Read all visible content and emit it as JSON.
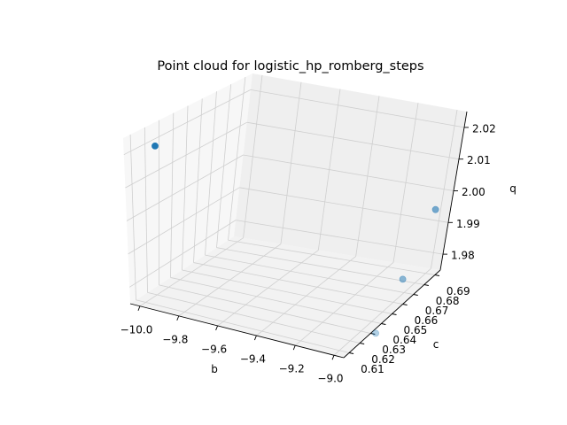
{
  "chart_data": {
    "type": "scatter",
    "projection": "3d",
    "title": "Point cloud for logistic_hp_romberg_steps",
    "xlabel": "b",
    "ylabel": "c",
    "zlabel": "q",
    "x_ticks": [
      -10.0,
      -9.8,
      -9.6,
      -9.4,
      -9.2,
      -9.0
    ],
    "x_tick_labels": [
      "−10.0",
      "−9.8",
      "−9.6",
      "−9.4",
      "−9.2",
      "−9.0"
    ],
    "y_ticks": [
      0.61,
      0.62,
      0.63,
      0.64,
      0.65,
      0.66,
      0.67,
      0.68,
      0.69
    ],
    "y_tick_labels": [
      "0.61",
      "0.62",
      "0.63",
      "0.64",
      "0.65",
      "0.66",
      "0.67",
      "0.68",
      "0.69"
    ],
    "z_ticks": [
      1.98,
      1.99,
      2.0,
      2.01,
      2.02
    ],
    "z_tick_labels": [
      "1.98",
      "1.99",
      "2.00",
      "2.01",
      "2.02"
    ],
    "xlim": [
      -10.05,
      -8.95
    ],
    "ylim": [
      0.605,
      0.695
    ],
    "zlim": [
      1.975,
      2.025
    ],
    "grid": true,
    "marker_color": "#1f77b4",
    "pane_color": "#f2f2f2",
    "points": [
      {
        "x": -10.0,
        "y": 0.62,
        "z": 2.02
      },
      {
        "x": -9.0,
        "y": 0.69,
        "z": 1.995
      },
      {
        "x": -9.0,
        "y": 0.667,
        "z": 1.98
      },
      {
        "x": -9.0,
        "y": 0.645,
        "z": 1.97
      }
    ]
  }
}
